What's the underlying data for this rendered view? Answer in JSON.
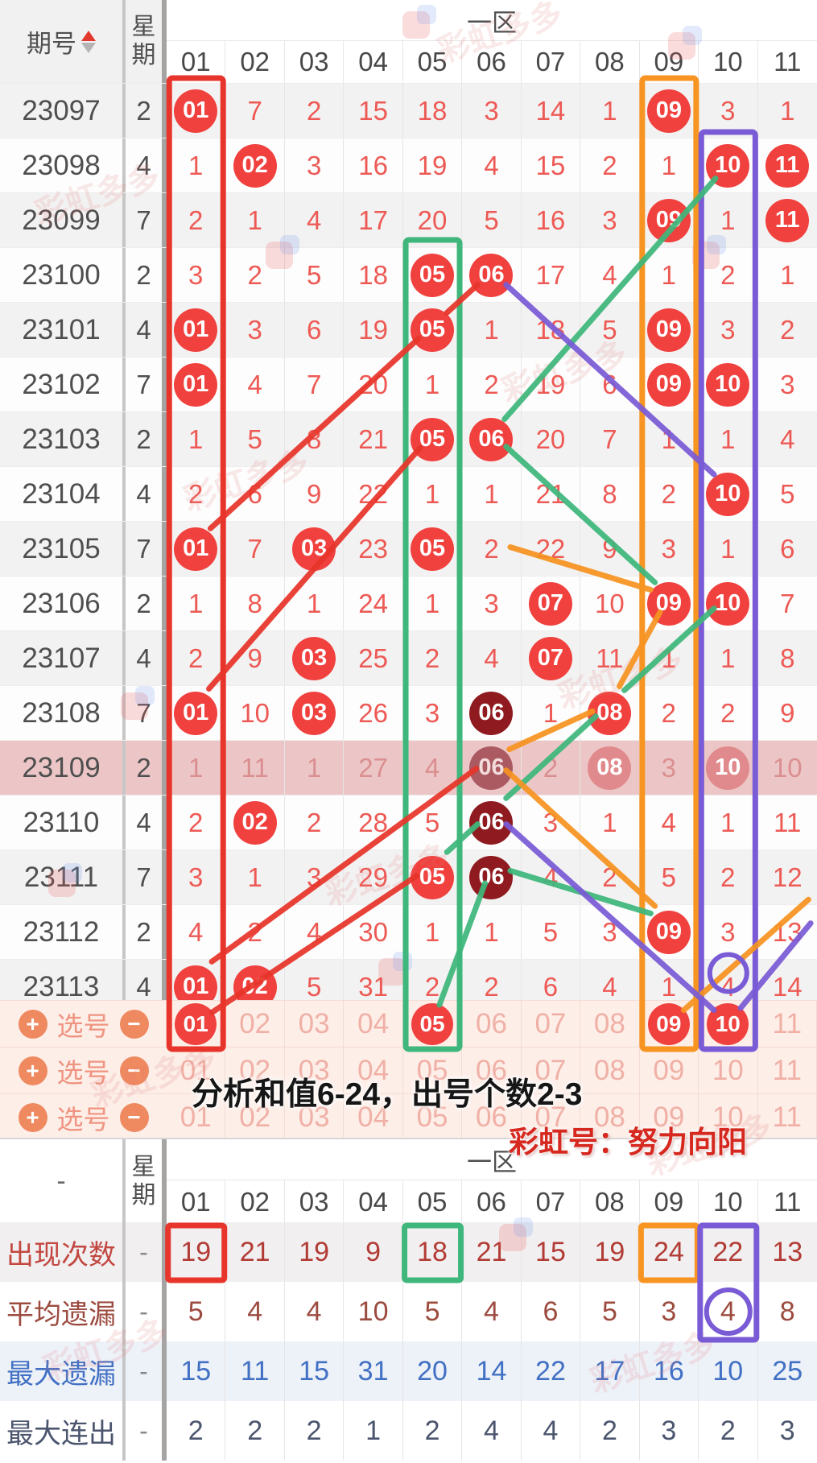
{
  "header": {
    "issue_label": "期号",
    "week_label": "星期",
    "zone_label": "一区",
    "columns": [
      "01",
      "02",
      "03",
      "04",
      "05",
      "06",
      "07",
      "08",
      "09",
      "10",
      "11"
    ]
  },
  "rows": [
    {
      "issue": "23097",
      "week": "2",
      "cells": [
        "01*",
        7,
        2,
        15,
        18,
        3,
        14,
        1,
        "09*",
        3,
        1
      ]
    },
    {
      "issue": "23098",
      "week": "4",
      "cells": [
        1,
        "02*",
        3,
        16,
        19,
        4,
        15,
        2,
        1,
        "10*",
        "11*"
      ]
    },
    {
      "issue": "23099",
      "week": "7",
      "cells": [
        2,
        1,
        4,
        17,
        20,
        5,
        16,
        3,
        "09*",
        1,
        "11*"
      ]
    },
    {
      "issue": "23100",
      "week": "2",
      "cells": [
        3,
        2,
        5,
        18,
        "05*",
        "06*",
        17,
        4,
        1,
        2,
        1
      ]
    },
    {
      "issue": "23101",
      "week": "4",
      "cells": [
        "01*",
        3,
        6,
        19,
        "05*",
        1,
        18,
        5,
        "09*",
        3,
        2
      ]
    },
    {
      "issue": "23102",
      "week": "7",
      "cells": [
        "01*",
        4,
        7,
        20,
        1,
        2,
        19,
        6,
        "09*",
        "10*",
        3
      ]
    },
    {
      "issue": "23103",
      "week": "2",
      "cells": [
        1,
        5,
        8,
        21,
        "05*",
        "06*",
        20,
        7,
        1,
        1,
        4
      ]
    },
    {
      "issue": "23104",
      "week": "4",
      "cells": [
        2,
        6,
        9,
        22,
        1,
        1,
        21,
        8,
        2,
        "10*",
        5
      ]
    },
    {
      "issue": "23105",
      "week": "7",
      "cells": [
        "01*",
        7,
        "03*",
        23,
        "05*",
        2,
        22,
        9,
        3,
        1,
        6
      ]
    },
    {
      "issue": "23106",
      "week": "2",
      "cells": [
        1,
        8,
        1,
        24,
        1,
        3,
        "07*",
        10,
        "09*",
        "10*",
        7
      ]
    },
    {
      "issue": "23107",
      "week": "4",
      "cells": [
        2,
        9,
        "03*",
        25,
        2,
        4,
        "07*",
        11,
        1,
        1,
        8
      ]
    },
    {
      "issue": "23108",
      "week": "7",
      "cells": [
        "01*",
        10,
        "03*",
        26,
        3,
        "06#",
        1,
        "08*",
        2,
        2,
        9
      ]
    },
    {
      "issue": "23109",
      "week": "2",
      "highlighted": true,
      "cells": [
        1,
        11,
        1,
        27,
        4,
        "06#",
        2,
        "08*",
        3,
        "10*",
        10
      ]
    },
    {
      "issue": "23110",
      "week": "4",
      "cells": [
        2,
        "02*",
        2,
        28,
        5,
        "06#",
        3,
        1,
        4,
        1,
        11
      ]
    },
    {
      "issue": "23111",
      "week": "7",
      "cells": [
        3,
        1,
        3,
        29,
        "05*",
        "06#",
        4,
        2,
        5,
        2,
        12
      ]
    },
    {
      "issue": "23112",
      "week": "2",
      "cells": [
        4,
        2,
        4,
        30,
        1,
        1,
        5,
        3,
        "09*",
        3,
        13
      ]
    },
    {
      "issue": "23113",
      "week": "4",
      "cells": [
        "01*",
        "02*",
        5,
        31,
        2,
        2,
        6,
        4,
        1,
        "4@",
        14
      ]
    }
  ],
  "picker": {
    "label": "选号",
    "plus_label": "+",
    "minus_label": "−",
    "rows": [
      [
        "01*",
        "02",
        "03",
        "04",
        "05*",
        "06",
        "07",
        "08",
        "09*",
        "10*",
        "11"
      ],
      [
        "01",
        "02",
        "03",
        "04",
        "05",
        "06",
        "07",
        "08",
        "09",
        "10",
        "11"
      ],
      [
        "01",
        "02",
        "03",
        "04",
        "05",
        "06",
        "07",
        "08",
        "09",
        "10",
        "11"
      ]
    ]
  },
  "overlay_texts": {
    "analysis": "分析和值6-24，出号个数2-3",
    "rainbow": "彩虹号：努力向阳"
  },
  "bottom": {
    "dash": "-",
    "week_label": "星期",
    "zone_label": "一区",
    "columns": [
      "01",
      "02",
      "03",
      "04",
      "05",
      "06",
      "07",
      "08",
      "09",
      "10",
      "11"
    ],
    "stats": [
      {
        "label": "出现次数",
        "dash": "-",
        "theme": "red",
        "values": [
          19,
          21,
          19,
          9,
          18,
          21,
          15,
          19,
          24,
          22,
          13
        ]
      },
      {
        "label": "平均遗漏",
        "dash": "-",
        "theme": "brown",
        "values": [
          5,
          4,
          4,
          10,
          5,
          4,
          6,
          5,
          3,
          4,
          8
        ]
      },
      {
        "label": "最大遗漏",
        "dash": "-",
        "theme": "blue",
        "values": [
          15,
          11,
          15,
          31,
          20,
          14,
          22,
          17,
          16,
          10,
          25
        ]
      },
      {
        "label": "最大连出",
        "dash": "-",
        "theme": "slate",
        "values": [
          2,
          2,
          2,
          1,
          2,
          4,
          4,
          2,
          3,
          2,
          3
        ]
      }
    ]
  },
  "chart_data": {
    "type": "table",
    "title": "一区 走势图 (期号 23097-23113)",
    "selected_numbers": [
      "01",
      "05",
      "09",
      "10"
    ],
    "appearance_counts": [
      19,
      21,
      19,
      9,
      18,
      21,
      15,
      19,
      24,
      22,
      13
    ],
    "average_missing": [
      5,
      4,
      4,
      10,
      5,
      4,
      6,
      5,
      3,
      4,
      8
    ],
    "max_missing": [
      15,
      11,
      15,
      31,
      20,
      14,
      22,
      17,
      16,
      10,
      25
    ],
    "max_consecutive": [
      2,
      2,
      2,
      1,
      2,
      4,
      4,
      2,
      3,
      2,
      3
    ]
  },
  "annotations": {
    "colors": {
      "red": "#e8352b",
      "green": "#3fb77c",
      "orange": "#f79422",
      "purple": "#7a5bd6"
    },
    "boxes": [
      {
        "color": "red",
        "col": 1,
        "r0": 0
      },
      {
        "color": "green",
        "col": 5,
        "r0": 3
      },
      {
        "color": "orange",
        "col": 9,
        "r0": 0
      },
      {
        "color": "purple",
        "col": 10,
        "r0": 1
      }
    ],
    "lines": [
      {
        "color": "red",
        "pts": [
          [
            6,
            3
          ],
          [
            5,
            4
          ],
          [
            1,
            8
          ]
        ]
      },
      {
        "color": "red",
        "pts": [
          [
            1,
            11
          ],
          [
            5,
            6
          ]
        ]
      },
      {
        "color": "red",
        "pts": [
          [
            1,
            17
          ],
          [
            5,
            14
          ]
        ]
      },
      {
        "color": "red",
        "pts": [
          [
            1,
            16
          ],
          [
            6,
            12
          ]
        ]
      },
      {
        "color": "green",
        "pts": [
          [
            10,
            1
          ],
          [
            6,
            6
          ],
          [
            9,
            9
          ]
        ]
      },
      {
        "color": "green",
        "pts": [
          [
            10,
            9
          ],
          [
            8,
            11
          ],
          [
            6,
            13
          ],
          [
            5,
            14
          ]
        ]
      },
      {
        "color": "green",
        "pts": [
          [
            6,
            14
          ],
          [
            9,
            15
          ]
        ]
      },
      {
        "color": "green",
        "pts": [
          [
            6,
            14
          ],
          [
            5,
            17
          ]
        ]
      },
      {
        "color": "orange",
        "pts": [
          [
            6,
            8
          ],
          [
            9,
            9
          ],
          [
            8,
            11
          ],
          [
            6,
            12
          ],
          [
            9,
            15
          ]
        ]
      },
      {
        "color": "orange",
        "pts": [
          [
            9,
            17
          ],
          [
            11.6,
            14.4
          ]
        ]
      },
      {
        "color": "purple",
        "pts": [
          [
            6,
            3
          ],
          [
            10,
            7
          ]
        ]
      },
      {
        "color": "purple",
        "pts": [
          [
            6,
            13
          ],
          [
            10,
            17
          ]
        ]
      },
      {
        "color": "purple",
        "pts": [
          [
            11.6,
            14.8
          ],
          [
            10,
            17
          ]
        ]
      }
    ],
    "rings": [
      {
        "color": "purple",
        "col": 10,
        "row": 16
      }
    ],
    "bottom_boxes": [
      {
        "color": "red",
        "col": 1
      },
      {
        "color": "green",
        "col": 5
      },
      {
        "color": "orange",
        "col": 9
      },
      {
        "color": "purple",
        "col": 10,
        "span": 2,
        "circle": true
      }
    ]
  },
  "watermark": {
    "text": "彩虹多多"
  }
}
